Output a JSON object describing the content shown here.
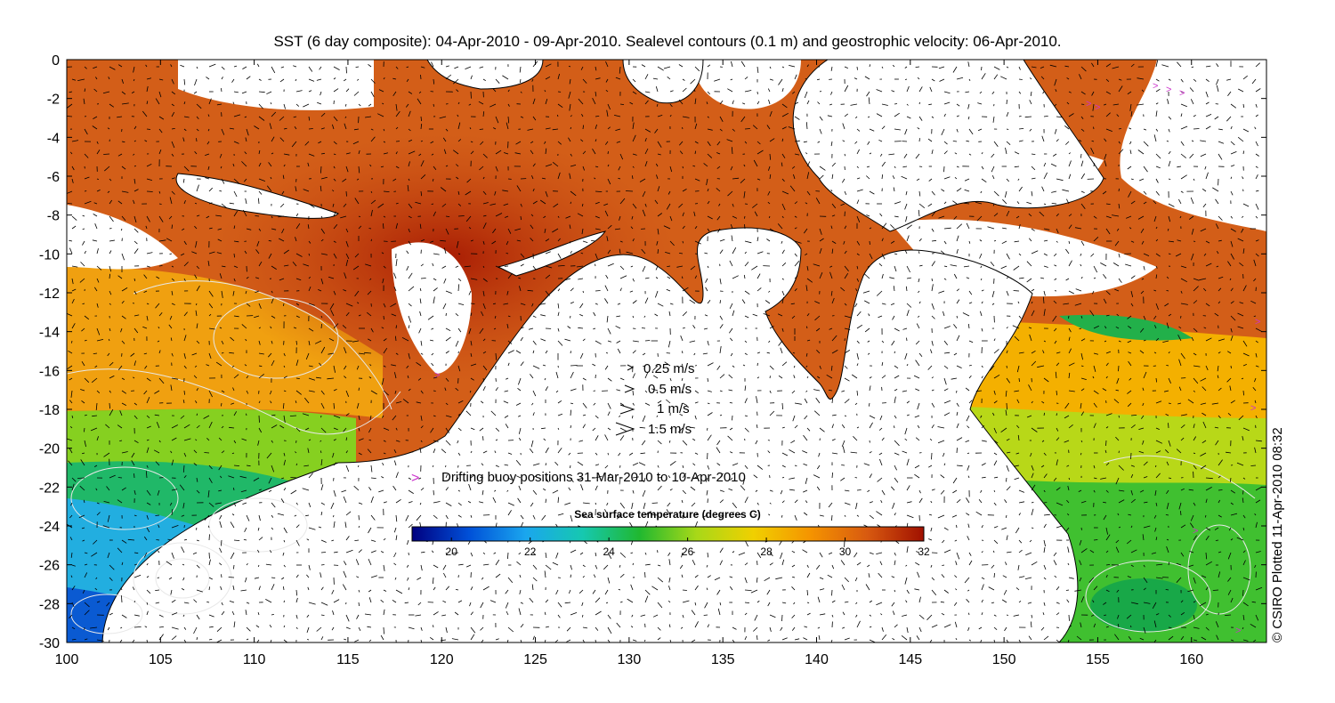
{
  "chart_data": {
    "type": "heatmap",
    "title": "SST (6 day composite): 04-Apr-2010 - 09-Apr-2010. Sealevel contours (0.1 m) and geostrophic velocity: 06-Apr-2010.",
    "xlim": [
      100,
      164
    ],
    "ylim": [
      -30,
      0
    ],
    "x_ticks": [
      "100",
      "105",
      "110",
      "115",
      "120",
      "125",
      "130",
      "135",
      "140",
      "145",
      "150",
      "155",
      "160"
    ],
    "y_ticks": [
      "0",
      "-2",
      "-4",
      "-6",
      "-8",
      "-10",
      "-12",
      "-14",
      "-16",
      "-18",
      "-20",
      "-22",
      "-24",
      "-26",
      "-28",
      "-30"
    ],
    "velocity_legend": [
      "0.25 m/s",
      "0.5 m/s",
      "1 m/s",
      "1.5 m/s"
    ],
    "velocity_legend_values": [
      0.25,
      0.5,
      1,
      1.5
    ],
    "buoy_legend": "Drifting buoy positions 31-Mar-2010 to 10-Apr-2010",
    "buoy_symbol": ">",
    "buoy_color": "#cc33cc",
    "colorbar": {
      "title": "Sea surface temperature (degrees C)",
      "range": [
        19,
        32
      ],
      "ticks": [
        "20",
        "22",
        "24",
        "26",
        "28",
        "30",
        "32"
      ],
      "colors": [
        "#000080",
        "#0050d8",
        "#1aa6ee",
        "#16c8b0",
        "#20b830",
        "#a8d818",
        "#f0d000",
        "#f59400",
        "#d85a10",
        "#a01000"
      ]
    },
    "grid": false,
    "land_color": "#ffffff",
    "credit": "© CSIRO Plotted 11-Apr-2010 08:32"
  }
}
